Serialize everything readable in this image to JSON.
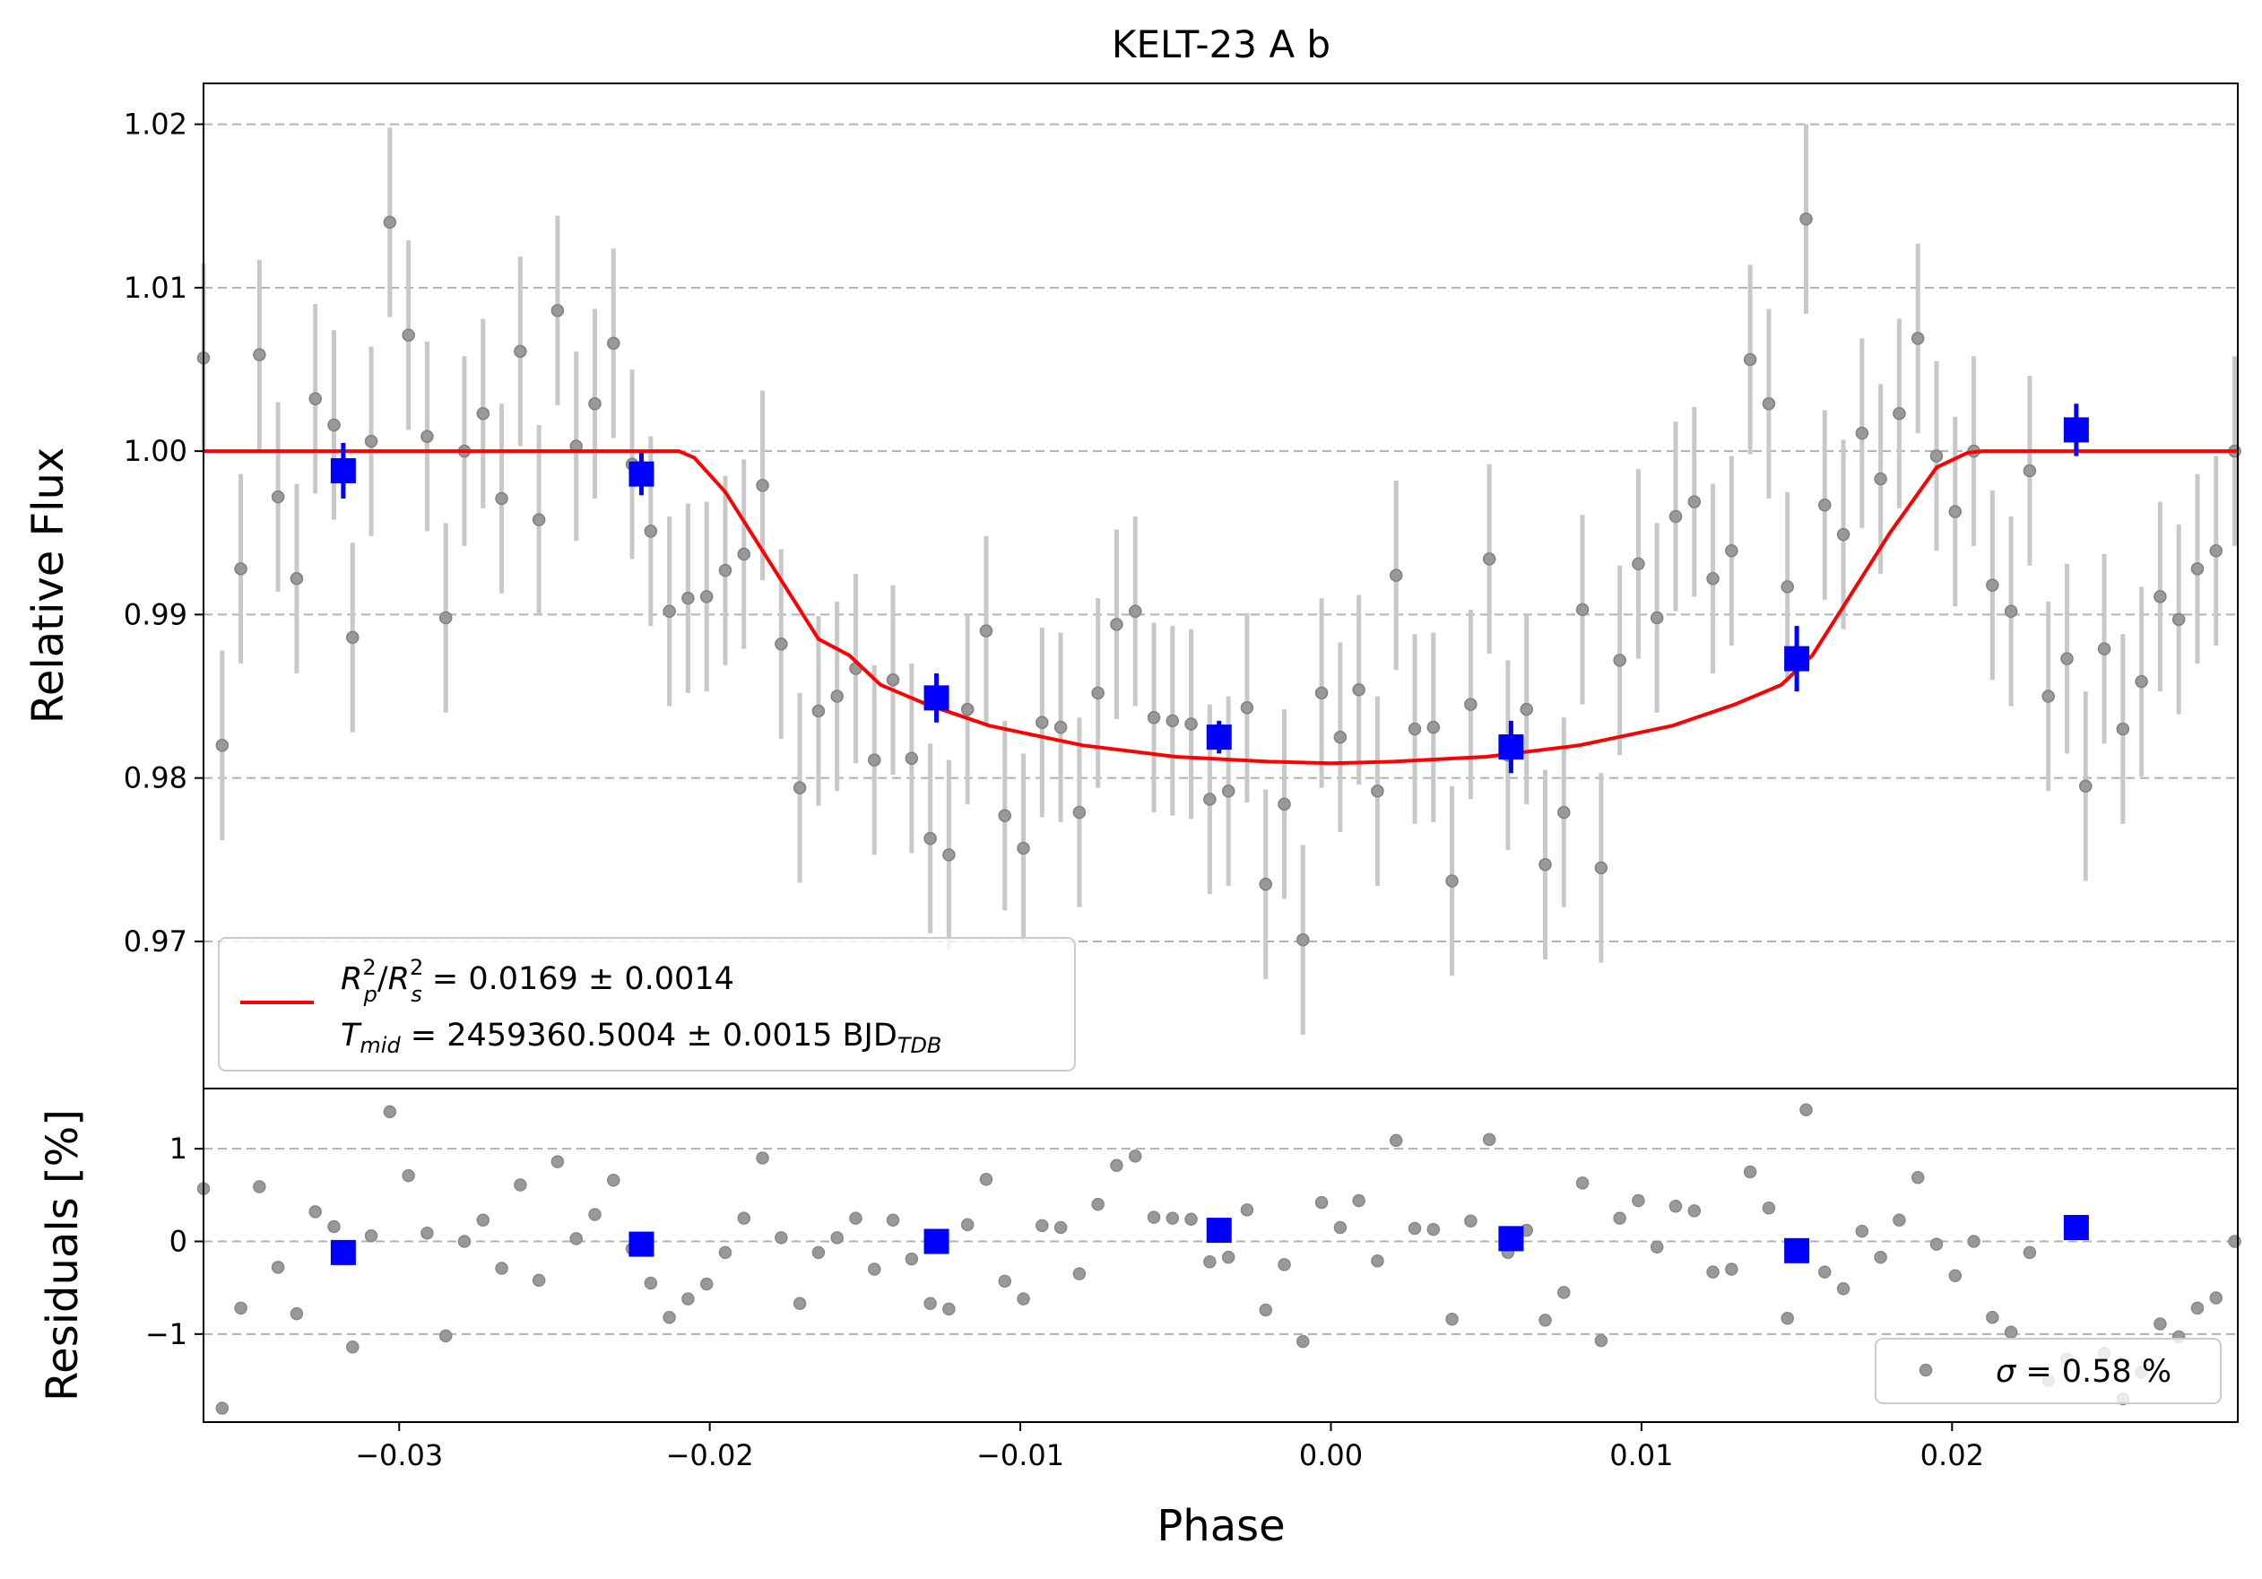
{
  "chart_data": [
    {
      "panel": "main",
      "type": "scatter",
      "title": "KELT-23 A b",
      "xlabel": "",
      "ylabel": "Relative Flux",
      "xlim": [
        -0.0363,
        0.0292
      ],
      "ylim": [
        0.961,
        1.0225
      ],
      "yticks": [
        0.97,
        0.98,
        0.99,
        1.0,
        1.01,
        1.02
      ],
      "ytick_labels": [
        "0.97",
        "0.98",
        "0.99",
        "1.00",
        "1.01",
        "1.02"
      ],
      "grid": "horizontal dashed",
      "colors": {
        "raw": "#808080",
        "raw_err": "#c8c8c8",
        "binned": "#0000ff",
        "model": "#ff0000",
        "grid": "#b0b0b0"
      },
      "legend": {
        "placement": "lower-left",
        "line1": {
          "a": "R",
          "a_sub": "p",
          "a_sup": "2",
          "b": "R",
          "b_sub": "s",
          "b_sup": "2",
          "text": " = 0.0169 ± 0.0014"
        },
        "line2": {
          "sym": "T",
          "sym_sub": "mid",
          "text": " = 2459360.5004 ± 0.0015 BJD",
          "text_sub": "TDB"
        }
      },
      "model": {
        "name": "transit model",
        "x": [
          -0.0363,
          -0.021,
          -0.0205,
          -0.0195,
          -0.018,
          -0.0165,
          -0.0155,
          -0.0145,
          -0.013,
          -0.011,
          -0.008,
          -0.005,
          -0.002,
          0.0,
          0.002,
          0.005,
          0.008,
          0.011,
          0.013,
          0.0145,
          0.0155,
          0.0165,
          0.018,
          0.0195,
          0.0205,
          0.021,
          0.0292
        ],
        "y": [
          1.0,
          1.0,
          0.9996,
          0.9975,
          0.993,
          0.9885,
          0.9875,
          0.9857,
          0.9845,
          0.9832,
          0.982,
          0.9813,
          0.981,
          0.9809,
          0.981,
          0.9813,
          0.982,
          0.9832,
          0.9845,
          0.9857,
          0.9875,
          0.9905,
          0.995,
          0.999,
          0.9999,
          1.0,
          1.0
        ]
      },
      "raw": {
        "x": [
          -0.0363,
          -0.0357,
          -0.0351,
          -0.0345,
          -0.0339,
          -0.0333,
          -0.0327,
          -0.0321,
          -0.0315,
          -0.0309,
          -0.0303,
          -0.0297,
          -0.0291,
          -0.0285,
          -0.0279,
          -0.0273,
          -0.0267,
          -0.0261,
          -0.0255,
          -0.0249,
          -0.0243,
          -0.0237,
          -0.0231,
          -0.0225,
          -0.0219,
          -0.0213,
          -0.0207,
          -0.0201,
          -0.0195,
          -0.0189,
          -0.0183,
          -0.0177,
          -0.0171,
          -0.0165,
          -0.0159,
          -0.0153,
          -0.0147,
          -0.0141,
          -0.0135,
          -0.0129,
          -0.0123,
          -0.0117,
          -0.0111,
          -0.0105,
          -0.0099,
          -0.0093,
          -0.0087,
          -0.0081,
          -0.0075,
          -0.0069,
          -0.0063,
          -0.0057,
          -0.0051,
          -0.0045,
          -0.0039,
          -0.0033,
          -0.0027,
          -0.0021,
          -0.0015,
          -0.0009,
          -0.0003,
          0.0003,
          0.0009,
          0.0015,
          0.0021,
          0.0027,
          0.0033,
          0.0039,
          0.0045,
          0.0051,
          0.0057,
          0.0063,
          0.0069,
          0.0075,
          0.0081,
          0.0087,
          0.0093,
          0.0099,
          0.0105,
          0.0111,
          0.0117,
          0.0123,
          0.0129,
          0.0135,
          0.0141,
          0.0147,
          0.0153,
          0.0159,
          0.0165,
          0.0171,
          0.0177,
          0.0183,
          0.0189,
          0.0195,
          0.0201,
          0.0207,
          0.0213,
          0.0219,
          0.0225,
          0.0231,
          0.0237,
          0.0243,
          0.0249,
          0.0255,
          0.0261,
          0.0267,
          0.0273,
          0.0279,
          0.0285,
          0.0291
        ],
        "y": [
          1.0057,
          0.982,
          0.9928,
          1.0059,
          0.9972,
          0.9922,
          1.0032,
          1.0016,
          0.9886,
          1.0006,
          1.014,
          1.0071,
          1.0009,
          0.9898,
          1.0,
          1.0023,
          0.9971,
          1.0061,
          0.9958,
          1.0086,
          1.0003,
          1.0029,
          1.0066,
          0.9992,
          0.9951,
          0.9902,
          0.991,
          0.9911,
          0.9927,
          0.9937,
          0.9979,
          0.9882,
          0.9794,
          0.9841,
          0.985,
          0.9867,
          0.9811,
          0.986,
          0.9812,
          0.9763,
          0.9753,
          0.9842,
          0.989,
          0.9777,
          0.9757,
          0.9834,
          0.9831,
          0.9779,
          0.9852,
          0.9894,
          0.9902,
          0.9837,
          0.9835,
          0.9833,
          0.9787,
          0.9792,
          0.9843,
          0.9735,
          0.9784,
          0.9701,
          0.9852,
          0.9825,
          0.9854,
          0.9792,
          0.9924,
          0.983,
          0.9831,
          0.9737,
          0.9845,
          0.9934,
          0.9814,
          0.9842,
          0.9747,
          0.9779,
          0.9903,
          0.9745,
          0.9872,
          0.9931,
          0.9898,
          0.996,
          0.9969,
          0.9922,
          0.9939,
          1.0056,
          1.0029,
          0.9917,
          1.0142,
          0.9967,
          0.9949,
          1.0011,
          0.9983,
          1.0023,
          1.0069,
          0.9997,
          0.9963,
          1.0,
          0.9918,
          0.9902,
          0.9988,
          0.985,
          0.9873,
          0.9795,
          0.9879,
          0.983,
          0.9859,
          0.9911,
          0.9897,
          0.9928,
          0.9939,
          1.0
        ],
        "err": 0.0058
      },
      "binned": {
        "x": [
          -0.0318,
          -0.0222,
          -0.0127,
          -0.0036,
          0.0058,
          0.015,
          0.024
        ],
        "y": [
          0.9988,
          0.9986,
          0.9849,
          0.9825,
          0.9819,
          0.9873,
          1.0013
        ],
        "err": [
          0.0017,
          0.0013,
          0.0015,
          0.001,
          0.0016,
          0.002,
          0.0016
        ]
      }
    },
    {
      "panel": "residuals",
      "type": "scatter",
      "xlabel": "Phase",
      "ylabel": "Residuals [%]",
      "xlim": [
        -0.0363,
        0.0292
      ],
      "ylim": [
        -1.95,
        1.65
      ],
      "xticks": [
        -0.03,
        -0.02,
        -0.01,
        0.0,
        0.01,
        0.02
      ],
      "xtick_labels": [
        "−0.03",
        "−0.02",
        "−0.01",
        "0.00",
        "0.01",
        "0.02"
      ],
      "yticks": [
        -1,
        0,
        1
      ],
      "ytick_labels": [
        "−1",
        "0",
        "1"
      ],
      "grid": "horizontal dashed",
      "legend": {
        "placement": "lower-right",
        "sym": "σ",
        "text": " = 0.58 %"
      },
      "raw": {
        "x": [
          -0.0363,
          -0.0357,
          -0.0351,
          -0.0345,
          -0.0339,
          -0.0333,
          -0.0327,
          -0.0321,
          -0.0315,
          -0.0309,
          -0.0303,
          -0.0297,
          -0.0291,
          -0.0285,
          -0.0279,
          -0.0273,
          -0.0267,
          -0.0261,
          -0.0255,
          -0.0249,
          -0.0243,
          -0.0237,
          -0.0231,
          -0.0225,
          -0.0219,
          -0.0213,
          -0.0207,
          -0.0201,
          -0.0195,
          -0.0189,
          -0.0183,
          -0.0177,
          -0.0171,
          -0.0165,
          -0.0159,
          -0.0153,
          -0.0147,
          -0.0141,
          -0.0135,
          -0.0129,
          -0.0123,
          -0.0117,
          -0.0111,
          -0.0105,
          -0.0099,
          -0.0093,
          -0.0087,
          -0.0081,
          -0.0075,
          -0.0069,
          -0.0063,
          -0.0057,
          -0.0051,
          -0.0045,
          -0.0039,
          -0.0033,
          -0.0027,
          -0.0021,
          -0.0015,
          -0.0009,
          -0.0003,
          0.0003,
          0.0009,
          0.0015,
          0.0021,
          0.0027,
          0.0033,
          0.0039,
          0.0045,
          0.0051,
          0.0057,
          0.0063,
          0.0069,
          0.0075,
          0.0081,
          0.0087,
          0.0093,
          0.0099,
          0.0105,
          0.0111,
          0.0117,
          0.0123,
          0.0129,
          0.0135,
          0.0141,
          0.0147,
          0.0153,
          0.0159,
          0.0165,
          0.0171,
          0.0177,
          0.0183,
          0.0189,
          0.0195,
          0.0201,
          0.0207,
          0.0213,
          0.0219,
          0.0225,
          0.0231,
          0.0237,
          0.0243,
          0.0249,
          0.0255,
          0.0261,
          0.0267,
          0.0273,
          0.0279,
          0.0285,
          0.0291
        ],
        "y": [
          0.57,
          -1.8,
          -0.72,
          0.59,
          -0.28,
          -0.78,
          0.32,
          0.16,
          -1.14,
          0.06,
          1.4,
          0.71,
          0.09,
          -1.02,
          0.0,
          0.23,
          -0.29,
          0.61,
          -0.42,
          0.86,
          0.03,
          0.29,
          0.66,
          -0.08,
          -0.45,
          -0.82,
          -0.62,
          -0.46,
          -0.12,
          0.25,
          0.9,
          0.04,
          -0.67,
          -0.12,
          0.04,
          0.25,
          -0.3,
          0.23,
          -0.19,
          -0.67,
          -0.73,
          0.18,
          0.67,
          -0.43,
          -0.62,
          0.17,
          0.15,
          -0.35,
          0.4,
          0.82,
          0.92,
          0.26,
          0.25,
          0.24,
          -0.22,
          -0.17,
          0.34,
          -0.74,
          -0.25,
          -1.08,
          0.42,
          0.15,
          0.44,
          -0.21,
          1.09,
          0.14,
          0.13,
          -0.84,
          0.22,
          1.1,
          -0.12,
          0.12,
          -0.85,
          -0.55,
          0.63,
          -1.07,
          0.25,
          0.44,
          -0.06,
          0.38,
          0.33,
          -0.33,
          -0.3,
          0.75,
          0.36,
          -0.83,
          1.42,
          -0.33,
          -0.51,
          0.11,
          -0.17,
          0.23,
          0.69,
          -0.03,
          -0.37,
          0.0,
          -0.82,
          -0.98,
          -0.12,
          -1.5,
          -1.27,
          -2.05,
          -1.21,
          -1.7,
          -1.41,
          -0.89,
          -1.03,
          -0.72,
          -0.61,
          0.0
        ]
      },
      "binned": {
        "x": [
          -0.0318,
          -0.0222,
          -0.0127,
          -0.0036,
          0.0058,
          0.015,
          0.024
        ],
        "y": [
          -0.12,
          -0.03,
          0.0,
          0.12,
          0.03,
          -0.1,
          0.15
        ]
      }
    }
  ]
}
